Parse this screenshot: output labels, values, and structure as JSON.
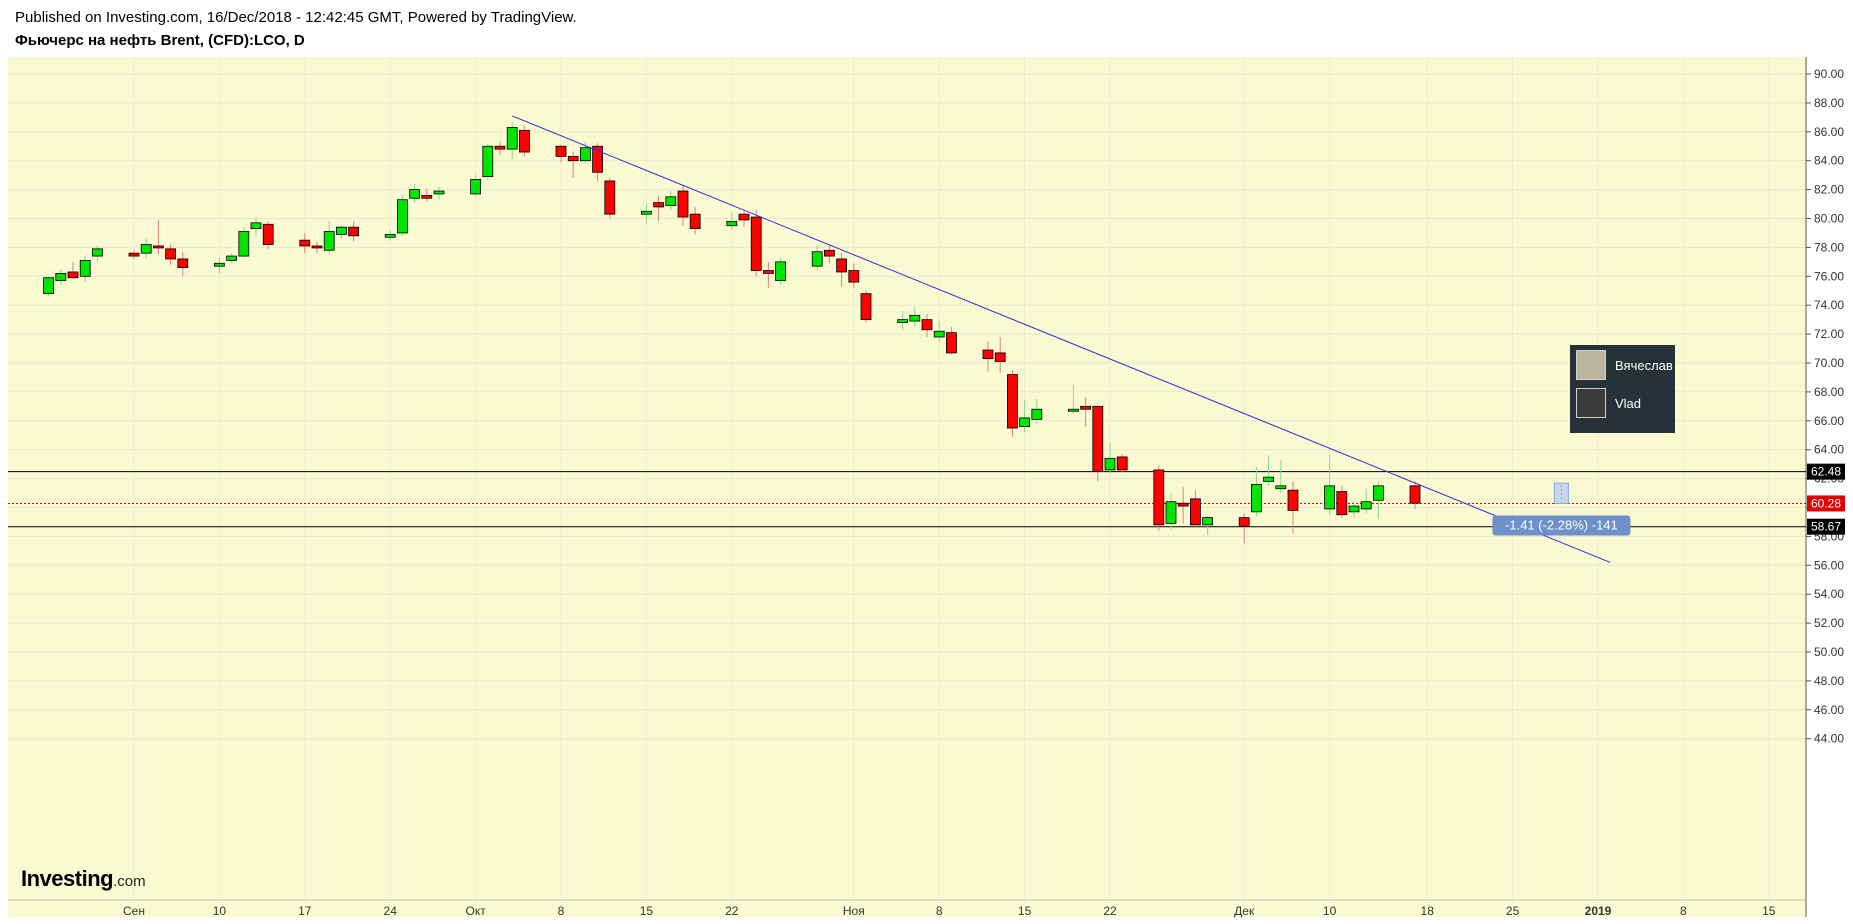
{
  "header": {
    "published": "Published on Investing.com, 16/Dec/2018 - 12:42:45 GMT, Powered by TradingView.",
    "symbol": "Фьючерс на нефть Brent, (CFD):LCO, D"
  },
  "colors": {
    "background": "#fafad2",
    "up": "#00e400",
    "down": "#ff0000",
    "trendline": "#2a2ae6",
    "level_line": "#000000",
    "current_price": "#e00000",
    "measure_label": "#6f90c8"
  },
  "users": [
    {
      "name": "Вячеслав",
      "icon": "avatar-icon"
    },
    {
      "name": "Vlad",
      "icon": "avatar-icon"
    }
  ],
  "logo": {
    "main": "Investing",
    "suffix": ".com"
  },
  "chart_data": {
    "type": "candlestick",
    "title": "Фьючерс на нефть Brent, (CFD):LCO, D",
    "ylim": [
      43,
      91
    ],
    "y_ticks": [
      "90.00",
      "88.00",
      "86.00",
      "84.00",
      "82.00",
      "80.00",
      "78.00",
      "76.00",
      "74.00",
      "72.00",
      "70.00",
      "68.00",
      "66.00",
      "64.00",
      "62.00",
      "60.00",
      "58.00",
      "56.00",
      "54.00",
      "52.00",
      "50.00",
      "48.00",
      "46.00",
      "44.00"
    ],
    "x_ticks": [
      {
        "label": "Сен",
        "date": "2018-09-03"
      },
      {
        "label": "10",
        "date": "2018-09-10"
      },
      {
        "label": "17",
        "date": "2018-09-17"
      },
      {
        "label": "24",
        "date": "2018-09-24"
      },
      {
        "label": "Окт",
        "date": "2018-10-01"
      },
      {
        "label": "8",
        "date": "2018-10-08"
      },
      {
        "label": "15",
        "date": "2018-10-15"
      },
      {
        "label": "22",
        "date": "2018-10-22"
      },
      {
        "label": "Ноя",
        "date": "2018-11-01"
      },
      {
        "label": "8",
        "date": "2018-11-08"
      },
      {
        "label": "15",
        "date": "2018-11-15"
      },
      {
        "label": "22",
        "date": "2018-11-22"
      },
      {
        "label": "Дек",
        "date": "2018-12-03"
      },
      {
        "label": "10",
        "date": "2018-12-10"
      },
      {
        "label": "18",
        "date": "2018-12-18"
      },
      {
        "label": "25",
        "date": "2018-12-25"
      },
      {
        "label": "2019",
        "date": "2019-01-01",
        "bold": true
      },
      {
        "label": "8",
        "date": "2019-01-08"
      },
      {
        "label": "15",
        "date": "2019-01-15"
      }
    ],
    "candles": [
      {
        "date": "2018-08-27",
        "o": 74.8,
        "h": 76.0,
        "l": 74.6,
        "c": 75.9
      },
      {
        "date": "2018-08-28",
        "o": 75.7,
        "h": 76.5,
        "l": 75.4,
        "c": 76.2
      },
      {
        "date": "2018-08-29",
        "o": 76.3,
        "h": 77.0,
        "l": 75.8,
        "c": 75.9
      },
      {
        "date": "2018-08-30",
        "o": 76.0,
        "h": 77.4,
        "l": 75.6,
        "c": 77.1
      },
      {
        "date": "2018-08-31",
        "o": 77.4,
        "h": 78.1,
        "l": 77.0,
        "c": 77.9
      },
      {
        "date": "2018-09-03",
        "o": 77.6,
        "h": 77.8,
        "l": 77.2,
        "c": 77.4
      },
      {
        "date": "2018-09-04",
        "o": 77.6,
        "h": 78.6,
        "l": 77.2,
        "c": 78.2
      },
      {
        "date": "2018-09-05",
        "o": 78.1,
        "h": 79.9,
        "l": 77.5,
        "c": 78.0
      },
      {
        "date": "2018-09-06",
        "o": 77.9,
        "h": 78.2,
        "l": 76.8,
        "c": 77.2
      },
      {
        "date": "2018-09-07",
        "o": 77.2,
        "h": 77.7,
        "l": 76.0,
        "c": 76.6
      },
      {
        "date": "2018-09-10",
        "o": 76.7,
        "h": 77.3,
        "l": 76.2,
        "c": 76.9
      },
      {
        "date": "2018-09-11",
        "o": 77.1,
        "h": 77.6,
        "l": 76.9,
        "c": 77.4
      },
      {
        "date": "2018-09-12",
        "o": 77.4,
        "h": 79.4,
        "l": 77.3,
        "c": 79.1
      },
      {
        "date": "2018-09-13",
        "o": 79.3,
        "h": 80.1,
        "l": 78.8,
        "c": 79.7
      },
      {
        "date": "2018-09-14",
        "o": 79.6,
        "h": 79.8,
        "l": 77.9,
        "c": 78.2
      },
      {
        "date": "2018-09-17",
        "o": 78.5,
        "h": 79.0,
        "l": 77.6,
        "c": 78.1
      },
      {
        "date": "2018-09-18",
        "o": 78.1,
        "h": 78.4,
        "l": 77.6,
        "c": 78.0
      },
      {
        "date": "2018-09-19",
        "o": 77.8,
        "h": 79.8,
        "l": 77.5,
        "c": 79.1
      },
      {
        "date": "2018-09-20",
        "o": 78.9,
        "h": 79.5,
        "l": 78.6,
        "c": 79.4
      },
      {
        "date": "2018-09-21",
        "o": 79.4,
        "h": 79.8,
        "l": 78.4,
        "c": 78.8
      },
      {
        "date": "2018-09-24",
        "o": 78.7,
        "h": 79.2,
        "l": 78.5,
        "c": 78.9
      },
      {
        "date": "2018-09-25",
        "o": 79.0,
        "h": 81.6,
        "l": 78.8,
        "c": 81.3
      },
      {
        "date": "2018-09-26",
        "o": 81.4,
        "h": 82.4,
        "l": 81.1,
        "c": 82.0
      },
      {
        "date": "2018-09-27",
        "o": 81.6,
        "h": 82.1,
        "l": 81.2,
        "c": 81.4
      },
      {
        "date": "2018-09-28",
        "o": 81.7,
        "h": 82.2,
        "l": 81.3,
        "c": 81.9
      },
      {
        "date": "2018-10-01",
        "o": 81.7,
        "h": 83.0,
        "l": 81.5,
        "c": 82.7
      },
      {
        "date": "2018-10-02",
        "o": 82.9,
        "h": 85.2,
        "l": 82.7,
        "c": 85.0
      },
      {
        "date": "2018-10-03",
        "o": 85.0,
        "h": 85.3,
        "l": 84.4,
        "c": 84.8
      },
      {
        "date": "2018-10-04",
        "o": 84.8,
        "h": 86.7,
        "l": 84.1,
        "c": 86.3
      },
      {
        "date": "2018-10-05",
        "o": 86.1,
        "h": 86.4,
        "l": 84.3,
        "c": 84.6
      },
      {
        "date": "2018-10-08",
        "o": 85.0,
        "h": 85.1,
        "l": 83.9,
        "c": 84.3
      },
      {
        "date": "2018-10-09",
        "o": 84.3,
        "h": 84.6,
        "l": 82.8,
        "c": 84.0
      },
      {
        "date": "2018-10-10",
        "o": 84.0,
        "h": 85.3,
        "l": 83.8,
        "c": 84.9
      },
      {
        "date": "2018-10-11",
        "o": 85.0,
        "h": 85.2,
        "l": 82.6,
        "c": 83.2
      },
      {
        "date": "2018-10-12",
        "o": 82.6,
        "h": 82.8,
        "l": 80.0,
        "c": 80.3
      },
      {
        "date": "2018-10-15",
        "o": 80.3,
        "h": 81.0,
        "l": 79.6,
        "c": 80.5
      },
      {
        "date": "2018-10-16",
        "o": 81.1,
        "h": 81.6,
        "l": 79.8,
        "c": 80.8
      },
      {
        "date": "2018-10-17",
        "o": 80.9,
        "h": 81.9,
        "l": 80.6,
        "c": 81.5
      },
      {
        "date": "2018-10-18",
        "o": 81.9,
        "h": 82.3,
        "l": 79.5,
        "c": 80.1
      },
      {
        "date": "2018-10-19",
        "o": 80.3,
        "h": 80.8,
        "l": 78.9,
        "c": 79.3
      },
      {
        "date": "2018-10-22",
        "o": 79.5,
        "h": 80.4,
        "l": 79.2,
        "c": 79.8
      },
      {
        "date": "2018-10-23",
        "o": 80.3,
        "h": 80.5,
        "l": 79.4,
        "c": 79.9
      },
      {
        "date": "2018-10-24",
        "o": 80.1,
        "h": 80.6,
        "l": 76.0,
        "c": 76.4
      },
      {
        "date": "2018-10-25",
        "o": 76.4,
        "h": 77.0,
        "l": 75.2,
        "c": 76.2
      },
      {
        "date": "2018-10-26",
        "o": 75.7,
        "h": 77.3,
        "l": 75.4,
        "c": 77.0
      },
      {
        "date": "2018-10-29",
        "o": 76.7,
        "h": 78.1,
        "l": 76.4,
        "c": 77.7
      },
      {
        "date": "2018-10-30",
        "o": 77.8,
        "h": 78.2,
        "l": 76.9,
        "c": 77.4
      },
      {
        "date": "2018-10-31",
        "o": 77.2,
        "h": 77.6,
        "l": 75.3,
        "c": 76.3
      },
      {
        "date": "2018-11-01",
        "o": 76.4,
        "h": 76.9,
        "l": 75.2,
        "c": 75.6
      },
      {
        "date": "2018-11-02",
        "o": 74.8,
        "h": 75.0,
        "l": 72.8,
        "c": 73.0
      },
      {
        "date": "2018-11-05",
        "o": 72.8,
        "h": 73.6,
        "l": 72.3,
        "c": 73.0
      },
      {
        "date": "2018-11-06",
        "o": 72.9,
        "h": 73.9,
        "l": 72.5,
        "c": 73.3
      },
      {
        "date": "2018-11-07",
        "o": 73.0,
        "h": 73.4,
        "l": 71.8,
        "c": 72.3
      },
      {
        "date": "2018-11-08",
        "o": 71.8,
        "h": 72.9,
        "l": 71.5,
        "c": 72.2
      },
      {
        "date": "2018-11-09",
        "o": 72.1,
        "h": 72.5,
        "l": 70.6,
        "c": 70.7
      },
      {
        "date": "2018-11-12",
        "o": 70.9,
        "h": 71.5,
        "l": 69.4,
        "c": 70.3
      },
      {
        "date": "2018-11-13",
        "o": 70.7,
        "h": 71.8,
        "l": 69.3,
        "c": 70.1
      },
      {
        "date": "2018-11-14",
        "o": 69.2,
        "h": 69.5,
        "l": 64.9,
        "c": 65.5
      },
      {
        "date": "2018-11-15",
        "o": 65.6,
        "h": 67.4,
        "l": 65.2,
        "c": 66.2
      },
      {
        "date": "2018-11-16",
        "o": 66.1,
        "h": 67.5,
        "l": 65.8,
        "c": 66.8
      },
      {
        "date": "2018-11-19",
        "o": 66.7,
        "h": 68.5,
        "l": 66.5,
        "c": 66.8
      },
      {
        "date": "2018-11-20",
        "o": 67.0,
        "h": 67.6,
        "l": 65.6,
        "c": 66.8
      },
      {
        "date": "2018-11-21",
        "o": 67.0,
        "h": 67.1,
        "l": 61.8,
        "c": 62.5
      },
      {
        "date": "2018-11-22",
        "o": 62.6,
        "h": 64.5,
        "l": 62.3,
        "c": 63.4
      },
      {
        "date": "2018-11-23",
        "o": 63.5,
        "h": 63.7,
        "l": 62.4,
        "c": 62.6
      },
      {
        "date": "2018-11-26",
        "o": 62.6,
        "h": 62.9,
        "l": 58.4,
        "c": 58.8
      },
      {
        "date": "2018-11-27",
        "o": 58.9,
        "h": 61.0,
        "l": 58.5,
        "c": 60.4
      },
      {
        "date": "2018-11-28",
        "o": 60.3,
        "h": 61.4,
        "l": 58.9,
        "c": 60.1
      },
      {
        "date": "2018-11-29",
        "o": 60.6,
        "h": 61.2,
        "l": 58.6,
        "c": 58.8
      },
      {
        "date": "2018-11-30",
        "o": 58.8,
        "h": 59.4,
        "l": 58.1,
        "c": 59.3
      },
      {
        "date": "2018-12-03",
        "o": 59.3,
        "h": 59.6,
        "l": 57.5,
        "c": 58.7
      },
      {
        "date": "2018-12-04",
        "o": 59.7,
        "h": 62.8,
        "l": 59.4,
        "c": 61.6
      },
      {
        "date": "2018-12-05",
        "o": 61.8,
        "h": 63.6,
        "l": 61.5,
        "c": 62.1
      },
      {
        "date": "2018-12-06",
        "o": 61.3,
        "h": 63.3,
        "l": 61.0,
        "c": 61.5
      },
      {
        "date": "2018-12-07",
        "o": 61.2,
        "h": 61.8,
        "l": 58.2,
        "c": 59.8
      },
      {
        "date": "2018-12-10",
        "o": 59.9,
        "h": 63.7,
        "l": 59.5,
        "c": 61.5
      },
      {
        "date": "2018-12-11",
        "o": 61.1,
        "h": 61.5,
        "l": 59.3,
        "c": 59.5
      },
      {
        "date": "2018-12-12",
        "o": 59.7,
        "h": 60.4,
        "l": 59.3,
        "c": 60.1
      },
      {
        "date": "2018-12-13",
        "o": 59.9,
        "h": 61.3,
        "l": 59.6,
        "c": 60.4
      },
      {
        "date": "2018-12-14",
        "o": 60.5,
        "h": 61.8,
        "l": 59.2,
        "c": 61.5
      },
      {
        "date": "2018-12-17",
        "o": 61.5,
        "h": 61.8,
        "l": 59.9,
        "c": 60.3
      }
    ],
    "horizontal_lines": [
      {
        "value": 62.48,
        "label": "62.48"
      },
      {
        "value": 58.67,
        "label": "58.67"
      }
    ],
    "current_price": {
      "value": 60.28,
      "label": "60.28"
    },
    "trendline": {
      "start": {
        "date": "2018-10-04",
        "value": 87.1
      },
      "end": {
        "date": "2019-01-02",
        "value": 56.2
      }
    },
    "measure": {
      "label": "-1.41 (-2.28%) -141",
      "from": 61.69,
      "to": 60.28
    }
  }
}
